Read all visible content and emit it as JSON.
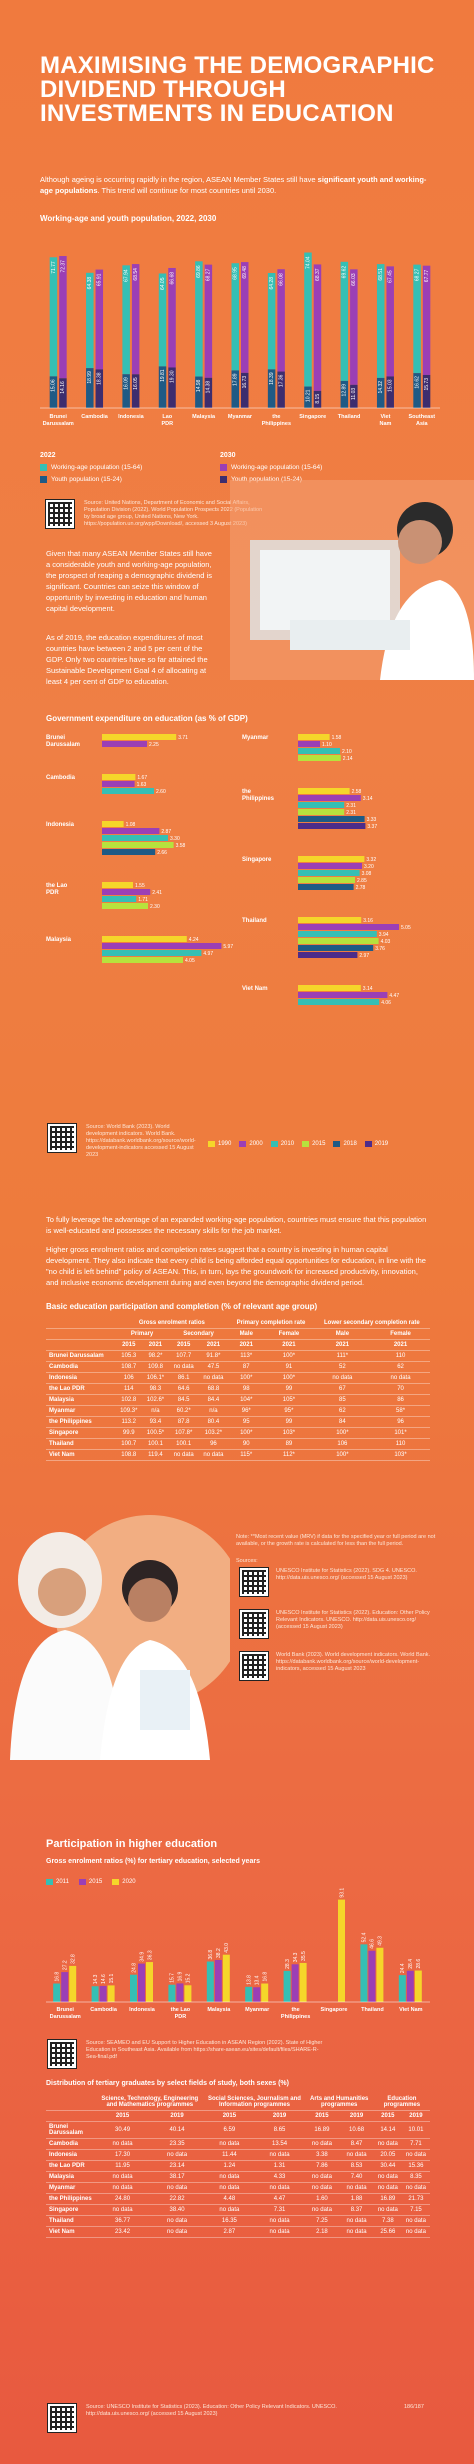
{
  "title": "MAXIMISING THE DEMOGRAPHIC DIVIDEND THROUGH INVESTMENTS IN EDUCATION",
  "intro": {
    "text_pre": "Although ageing is occurring rapidly in the region, ASEAN Member States still have ",
    "text_bold": "significant youth and working-age populations",
    "text_post": ". This trend will continue for most countries until 2030."
  },
  "population_chart": {
    "title": "Working-age and youth population, 2022, 2030",
    "legend_2022_label": "2022",
    "legend_2030_label": "2030",
    "legend": {
      "wa2022": "Working-age population (15-64)",
      "y2022": "Youth population (15-24)",
      "wa2030": "Working-age population (15-64)",
      "y2030": "Youth population (15-24)"
    },
    "source": "Source: United Nations, Department of Economic and Social Affairs, Population Division (2022). World Population Prospects 2022 (Population by broad age group, United Nations, New York. https://population.un.org/wpp/Download/, accessed 3 August 2023)",
    "colors": {
      "wa2022": "#35bfb4",
      "y2022": "#1f5a85",
      "wa2030": "#9b3fb5",
      "y2030": "#3d2d6e"
    }
  },
  "chart_data": [
    {
      "type": "bar",
      "title": "Working-age and youth population, 2022, 2030",
      "categories": [
        "Brunei Darussalam",
        "Cambodia",
        "Indonesia",
        "Lao PDR",
        "Malaysia",
        "Myanmar",
        "the Philippines",
        "Singapore",
        "Thailand",
        "Viet Nam",
        "Southeast Asia"
      ],
      "series": [
        {
          "name": "Working-age population (15-64) 2022",
          "values": [
            71.77,
            64.38,
            67.94,
            64.05,
            69.86,
            68.95,
            64.28,
            74.04,
            69.62,
            68.51,
            68.27
          ]
        },
        {
          "name": "Working-age population (15-64) 2030",
          "values": [
            72.37,
            65.91,
            68.54,
            66.68,
            68.27,
            69.48,
            66.08,
            68.37,
            66.03,
            67.45,
            67.77
          ]
        },
        {
          "name": "Youth population (15-24) 2022",
          "values": [
            15.06,
            18.99,
            16.09,
            19.81,
            14.98,
            17.89,
            18.39,
            10.21,
            12.89,
            14.32,
            16.62
          ]
        },
        {
          "name": "Youth population (15-24) 2030",
          "values": [
            14.16,
            18.38,
            16.05,
            19.3,
            14.38,
            16.73,
            17.36,
            8.15,
            11.03,
            15.03,
            15.73
          ]
        }
      ],
      "ylim": [
        0,
        80
      ]
    },
    {
      "type": "bar",
      "title": "Government expenditure on education (as % of GDP)",
      "categories": [
        "Brunei Darussalam",
        "Cambodia",
        "Indonesia",
        "the Lao PDR",
        "Malaysia",
        "Myanmar",
        "the Philippines",
        "Singapore",
        "Thailand",
        "Viet Nam"
      ],
      "series_names": [
        "1990",
        "2000",
        "2010",
        "2015",
        "2018",
        "2019"
      ],
      "groups": [
        {
          "name": "Brunei Darussalam",
          "values": [
            3.71,
            2.25
          ]
        },
        {
          "name": "Cambodia",
          "values": [
            1.67,
            1.63,
            2.6
          ]
        },
        {
          "name": "Indonesia",
          "values": [
            1.08,
            2.87,
            3.3,
            3.58,
            2.66
          ]
        },
        {
          "name": "the Lao PDR",
          "values": [
            1.55,
            2.41,
            1.71,
            2.3
          ]
        },
        {
          "name": "Malaysia",
          "values": [
            4.24,
            5.97,
            4.97,
            4.05
          ]
        },
        {
          "name": "Myanmar",
          "values": [
            1.58,
            1.1,
            2.1,
            2.14
          ]
        },
        {
          "name": "the Philippines",
          "values": [
            2.58,
            3.14,
            2.31,
            2.31,
            3.33,
            3.37
          ]
        },
        {
          "name": "Singapore",
          "values": [
            3.32,
            3.2,
            3.08,
            2.85,
            2.78
          ]
        },
        {
          "name": "Thailand",
          "values": [
            3.16,
            5.05,
            3.94,
            4.03,
            3.76,
            2.97
          ]
        },
        {
          "name": "Viet Nam",
          "values": [
            3.14,
            4.47,
            4.06
          ]
        }
      ]
    },
    {
      "type": "bar",
      "title": "Gross enrolment ratios (%) for tertiary education, selected years",
      "categories": [
        "Brunei Darussalam",
        "Cambodia",
        "Indonesia",
        "the Lao PDR",
        "Malaysia",
        "Myanmar",
        "the Philippines",
        "Singapore",
        "Thailand",
        "Viet Nam"
      ],
      "series": [
        {
          "name": "2011",
          "values": [
            16.8,
            14.3,
            24.8,
            15.7,
            36.8,
            13.8,
            28.3,
            null,
            52.4,
            24.4
          ]
        },
        {
          "name": "2015",
          "values": [
            27.2,
            14.6,
            34.9,
            16.9,
            38.2,
            13.4,
            34.3,
            null,
            46.6,
            28.4
          ]
        },
        {
          "name": "2020",
          "values": [
            32.8,
            15.1,
            36.3,
            15.2,
            43.0,
            16.8,
            35.5,
            93.1,
            49.3,
            28.6
          ]
        }
      ]
    }
  ],
  "expenditure": {
    "left_para_1": "Given that many ASEAN Member States still have a considerable youth and working-age population, the prospect of reaping a demographic dividend is significant. Countries can seize this window of opportunity by investing in education and human capital development.",
    "left_para_2": "As of 2019, the education expenditures of most countries have between 2 and 5 per cent of the GDP. Only two countries have so far attained the Sustainable Development Goal 4 of allocating at least 4 per cent of GDP to education.",
    "title": "Government expenditure on education (as % of GDP)",
    "years": [
      "1990",
      "2000",
      "2010",
      "2015",
      "2018",
      "2019"
    ],
    "colors": [
      "#f5d62a",
      "#9b3fb5",
      "#35bfb4",
      "#b7e23d",
      "#1f5a85",
      "#4d2c8a"
    ],
    "source": "Source: World Bank (2023). World development indicators. World Bank. https://databank.worldbank.org/source/world-development-indicators accessed 15 August 2023"
  },
  "participation": {
    "para_1": "To fully leverage the advantage of an expanded working-age population, countries must ensure that this population is well-educated and possesses the necessary skills for the job market.",
    "para_2": "Higher gross enrolment ratios and completion rates suggest that a country is investing in human capital development. They also indicate that every child is being afforded equal opportunities for education, in line with the \"no child is left behind\" policy of ASEAN. This, in turn, lays the groundwork for increased productivity, innovation, and inclusive economic development during and even beyond the demographic dividend period.",
    "title": "Basic education participation and completion (% of relevant age group)",
    "h_gross": "Gross enrolment ratios",
    "h_primary_compl": "Primary completion rate",
    "h_lower_sec": "Lower secondary completion rate",
    "h_primary": "Primary",
    "h_secondary": "Secondary",
    "h_male": "Male",
    "h_female": "Female",
    "years": [
      "2015",
      "2021",
      "2015",
      "2021",
      "2021",
      "2021",
      "2021",
      "2021"
    ],
    "rows": [
      [
        "Brunei Darussalam",
        "105.3",
        "98.2*",
        "107.7",
        "91.8*",
        "113*",
        "100*",
        "111*",
        "110"
      ],
      [
        "Cambodia",
        "108.7",
        "109.8",
        "no data",
        "47.5",
        "87",
        "91",
        "52",
        "62"
      ],
      [
        "Indonesia",
        "106",
        "106.1*",
        "86.1",
        "no data",
        "100*",
        "100*",
        "no data",
        "no data"
      ],
      [
        "the Lao PDR",
        "114",
        "98.3",
        "64.6",
        "68.8",
        "98",
        "99",
        "67",
        "70"
      ],
      [
        "Malaysia",
        "102.8",
        "102.6*",
        "84.5",
        "84.4",
        "104*",
        "105*",
        "85",
        "86"
      ],
      [
        "Myanmar",
        "109.3*",
        "n/a",
        "60.2*",
        "n/a",
        "96*",
        "95*",
        "62",
        "58*"
      ],
      [
        "the Philippines",
        "113.2",
        "93.4",
        "87.8",
        "80.4",
        "95",
        "99",
        "84",
        "96"
      ],
      [
        "Singapore",
        "99.9",
        "100.5*",
        "107.8*",
        "103.2*",
        "100*",
        "103*",
        "100*",
        "101*"
      ],
      [
        "Thailand",
        "100.7",
        "100.1",
        "100.1",
        "96",
        "90",
        "89",
        "106",
        "110"
      ],
      [
        "Viet Nam",
        "108.8",
        "119.4",
        "no data",
        "no data",
        "115*",
        "112*",
        "100*",
        "103*"
      ]
    ],
    "note": "Note: **Most recent value (MRV) if data for the specified year or full period are not available, or the growth rate is calculated for less than the full period.",
    "sources_label": "Sources:",
    "source_1": "UNESCO Institute for Statistics (2022). SDG 4. UNESCO. http://data.uis.unesco.org/ (accessed 15 August 2023)",
    "source_2": "UNESCO Institute for Statistics (2022). Education: Other Policy Relevant Indicators. UNESCO. http://data.uis.unesco.org/ (accessed 15 August 2023)",
    "source_3": "World Bank (2023). World development indicators. World Bank. https://databank.worldbank.org/source/world-development-indicators, accessed 15 August 2023"
  },
  "higher_ed": {
    "title": "Participation in higher education",
    "chart_title": "Gross enrolment ratios (%) for tertiary education, selected years",
    "legend": [
      "2011",
      "2015",
      "2020"
    ],
    "colors": [
      "#35bfb4",
      "#9b3fb5",
      "#f5d62a"
    ],
    "source": "Source: SEAMEO and EU Support to Higher Education in ASEAN Region (2022). State of Higher Education in Southeast Asia. Available from https://share-asean.eu/sites/default/files/SHARE-R-Sea-final.pdf",
    "dist_title": "Distribution of tertiary graduates by select fields of study, both sexes (%)",
    "dist_headers": [
      "Science, Technology, Engineering and Mathematics programmes",
      "Social Sciences, Journalism and Information programmes",
      "Arts and Humanities programmes",
      "Education programmes"
    ],
    "dist_years": [
      "2015",
      "2019",
      "2015",
      "2019",
      "2015",
      "2019",
      "2015",
      "2019"
    ],
    "dist_rows": [
      [
        "Brunei Darussalam",
        "30.49",
        "40.14",
        "6.59",
        "8.65",
        "16.89",
        "10.68",
        "14.14",
        "10.01"
      ],
      [
        "Cambodia",
        "no data",
        "23.35",
        "no data",
        "13.54",
        "no data",
        "8.47",
        "no data",
        "7.71"
      ],
      [
        "Indonesia",
        "17.30",
        "no data",
        "11.44",
        "no data",
        "3.38",
        "no data",
        "20.05",
        "no data"
      ],
      [
        "the Lao PDR",
        "11.95",
        "23.14",
        "1.24",
        "1.31",
        "7.86",
        "8.53",
        "30.44",
        "15.36"
      ],
      [
        "Malaysia",
        "no data",
        "38.17",
        "no data",
        "4.33",
        "no data",
        "7.40",
        "no data",
        "8.35"
      ],
      [
        "Myanmar",
        "no data",
        "no data",
        "no data",
        "no data",
        "no data",
        "no data",
        "no data",
        "no data"
      ],
      [
        "the Philippines",
        "24.80",
        "22.82",
        "4.48",
        "4.47",
        "1.60",
        "1.88",
        "16.89",
        "21.73"
      ],
      [
        "Singapore",
        "no data",
        "38.40",
        "no data",
        "7.31",
        "no data",
        "8.37",
        "no data",
        "7.15"
      ],
      [
        "Thailand",
        "36.77",
        "no data",
        "16.35",
        "no data",
        "7.25",
        "no data",
        "7.38",
        "no data"
      ],
      [
        "Viet Nam",
        "23.42",
        "no data",
        "2.87",
        "no data",
        "2.18",
        "no data",
        "25.66",
        "no data"
      ]
    ],
    "source_2": "Source: UNESCO Institute for Statistics (2023). Education: Other Policy Relevant Indicators. UNESCO. http://data.uis.unesco.org/ (accessed 15 August 2023)",
    "page": "186/187"
  }
}
